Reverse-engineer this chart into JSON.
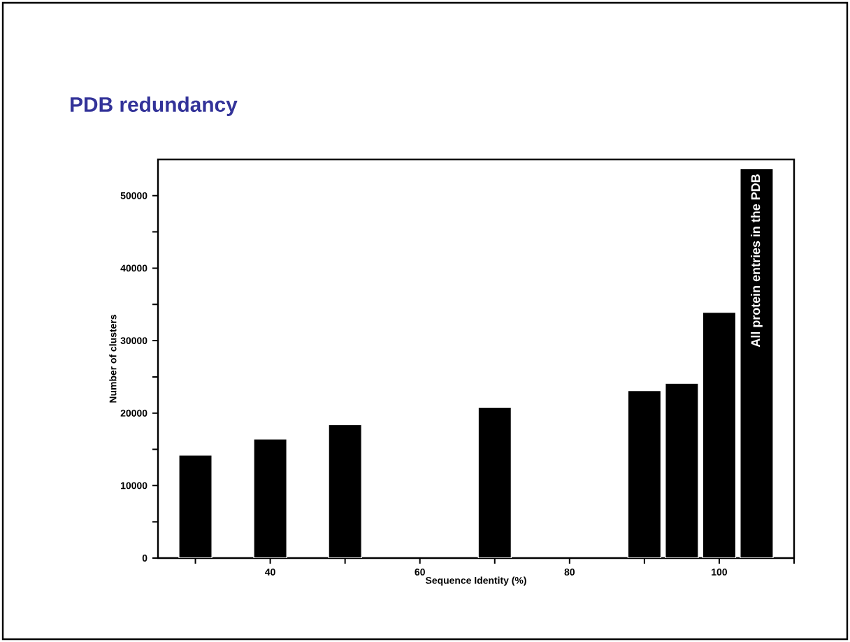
{
  "chart_data": {
    "type": "bar",
    "title": "PDB redundancy",
    "xlabel": "Sequence Identity (%)",
    "ylabel": "Number of clusters",
    "x": [
      30,
      40,
      50,
      70,
      90,
      95,
      100,
      105
    ],
    "values": [
      14200,
      16400,
      18400,
      20800,
      23100,
      24100,
      33900,
      53700
    ],
    "color": "#000000",
    "xlim": [
      25,
      110
    ],
    "xticks": [
      {
        "value": 30,
        "label": null
      },
      40,
      {
        "value": 50,
        "label": null
      },
      60,
      {
        "value": 70,
        "label": null
      },
      80,
      {
        "value": 90,
        "label": null
      },
      100,
      {
        "value": 110,
        "label": null
      }
    ],
    "ylim": [
      0,
      55000
    ],
    "yticks": [
      0,
      {
        "value": 5000,
        "label": null
      },
      10000,
      {
        "value": 15000,
        "label": null
      },
      20000,
      {
        "value": 25000,
        "label": null
      },
      30000,
      {
        "value": 35000,
        "label": null
      },
      40000,
      {
        "value": 45000,
        "label": null
      },
      50000
    ],
    "annotations": [
      {
        "text": "All protein entries in the PDB",
        "x": 105,
        "y": 53700
      }
    ],
    "grid": false
  }
}
